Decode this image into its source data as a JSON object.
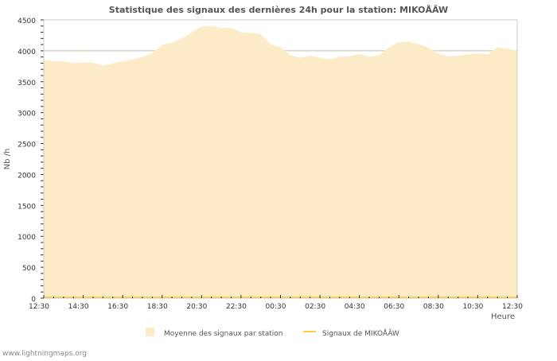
{
  "chart_data": {
    "type": "area",
    "title": "Statistique des signaux des dernières 24h pour la station: MIKOÅÃW",
    "xlabel": "Heure",
    "ylabel": "Nb /h",
    "ylim": [
      0,
      4500
    ],
    "yticks": [
      "0",
      "500",
      "1000",
      "1500",
      "2000",
      "2500",
      "3000",
      "3500",
      "4000",
      "4500"
    ],
    "xticks": [
      "12:30",
      "14:30",
      "16:30",
      "18:30",
      "20:30",
      "22:30",
      "00:30",
      "02:30",
      "04:30",
      "06:30",
      "08:30",
      "10:30",
      "12:30"
    ],
    "grid": true,
    "legend_position": "bottom",
    "series": [
      {
        "name": "Moyenne des signaux par station",
        "color": "#fdebc8",
        "values": [
          3850,
          3830,
          3830,
          3800,
          3810,
          3810,
          3760,
          3800,
          3830,
          3860,
          3900,
          3960,
          4100,
          4130,
          4200,
          4300,
          4390,
          4400,
          4370,
          4370,
          4300,
          4290,
          4270,
          4100,
          4060,
          3930,
          3890,
          3920,
          3890,
          3860,
          3900,
          3910,
          3950,
          3900,
          3930,
          4060,
          4140,
          4150,
          4110,
          4050,
          3950,
          3910,
          3920,
          3940,
          3960,
          3940,
          4060,
          4030,
          4000
        ]
      },
      {
        "name": "Signaux de MIKOÅÃW",
        "color": "#ffcc44",
        "values": [
          0,
          0,
          0,
          0,
          0,
          0,
          0,
          0,
          0,
          0,
          0,
          0,
          0,
          0,
          0,
          0,
          0,
          0,
          0,
          0,
          0,
          0,
          0,
          0,
          0,
          0,
          0,
          0,
          0,
          0,
          0,
          0,
          0,
          0,
          0,
          0,
          0,
          0,
          0,
          0,
          0,
          0,
          0,
          0,
          0,
          0,
          0,
          0,
          0
        ]
      }
    ]
  },
  "footer": "www.lightningmaps.org"
}
